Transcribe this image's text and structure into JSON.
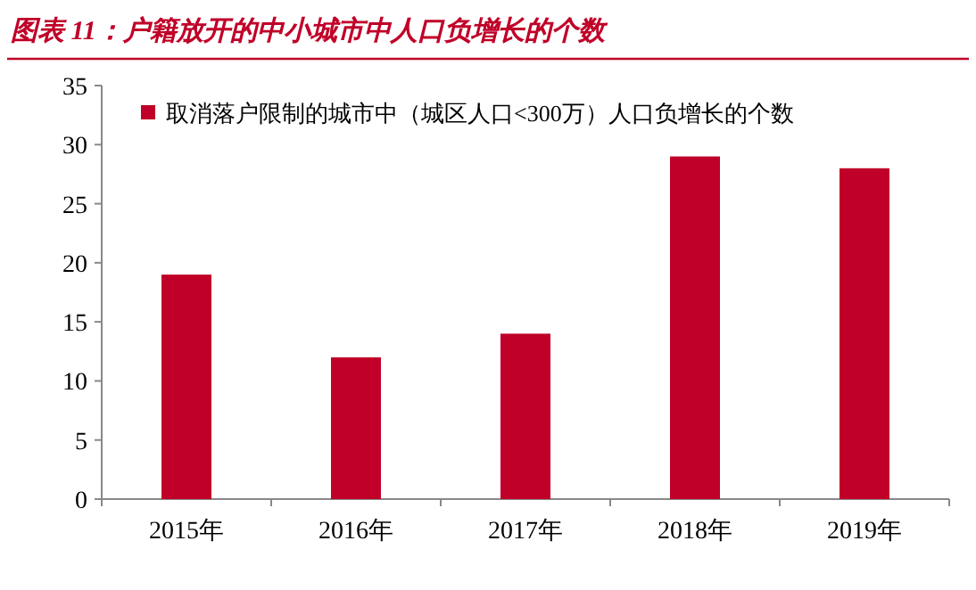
{
  "chart_data": {
    "type": "bar",
    "title": "图表 11：户籍放开的中小城市中人口负增长的个数",
    "categories": [
      "2015年",
      "2016年",
      "2017年",
      "2018年",
      "2019年"
    ],
    "series": [
      {
        "name": "取消落户限制的城市中（城区人口<300万）人口负增长的个数",
        "color": "#c00028",
        "values": [
          19,
          12,
          14,
          29,
          28
        ]
      }
    ],
    "ylim": [
      0,
      35
    ],
    "yticks": [
      0,
      5,
      10,
      15,
      20,
      25,
      30,
      35
    ],
    "legend": "top left"
  }
}
